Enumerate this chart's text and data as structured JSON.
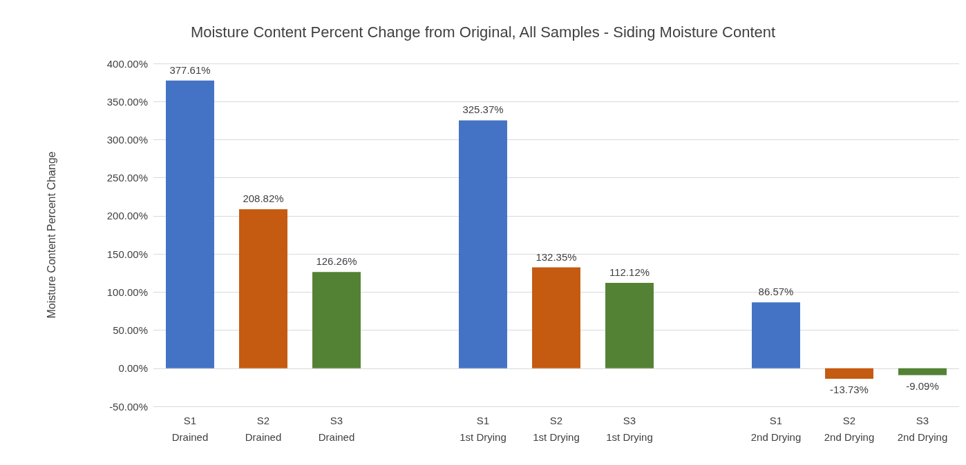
{
  "chart_data": {
    "type": "bar",
    "title": "Moisture Content Percent Change from Original, All Samples - Siding Moisture Content",
    "ylabel": "Moisture Content Percent Change",
    "categories": [
      "S1\nDrained",
      "S2\nDrained",
      "S3\nDrained",
      null,
      "S1\n1st Drying",
      "S2\n1st Drying",
      "S3\n1st Drying",
      null,
      "S1\n2nd Drying",
      "S2\n2nd Drying",
      "S3\n2nd Drying"
    ],
    "values": [
      377.61,
      208.82,
      126.26,
      null,
      325.37,
      132.35,
      112.12,
      null,
      86.57,
      -13.73,
      -9.09
    ],
    "colors": [
      "#4472c4",
      "#c55a11",
      "#548235",
      null,
      "#4472c4",
      "#c55a11",
      "#548235",
      null,
      "#4472c4",
      "#c55a11",
      "#548235"
    ],
    "value_labels": [
      "377.61%",
      "208.82%",
      "126.26%",
      null,
      "325.37%",
      "132.35%",
      "112.12%",
      null,
      "86.57%",
      "-13.73%",
      "-9.09%"
    ],
    "ylim": [
      -50,
      400
    ],
    "yticks": [
      {
        "value": -50,
        "label": "-50.00%"
      },
      {
        "value": 0,
        "label": "0.00%"
      },
      {
        "value": 50,
        "label": "50.00%"
      },
      {
        "value": 100,
        "label": "100.00%"
      },
      {
        "value": 150,
        "label": "150.00%"
      },
      {
        "value": 200,
        "label": "200.00%"
      },
      {
        "value": 250,
        "label": "250.00%"
      },
      {
        "value": 300,
        "label": "300.00%"
      },
      {
        "value": 350,
        "label": "350.00%"
      },
      {
        "value": 400,
        "label": "400.00%"
      }
    ],
    "grid": "y"
  }
}
